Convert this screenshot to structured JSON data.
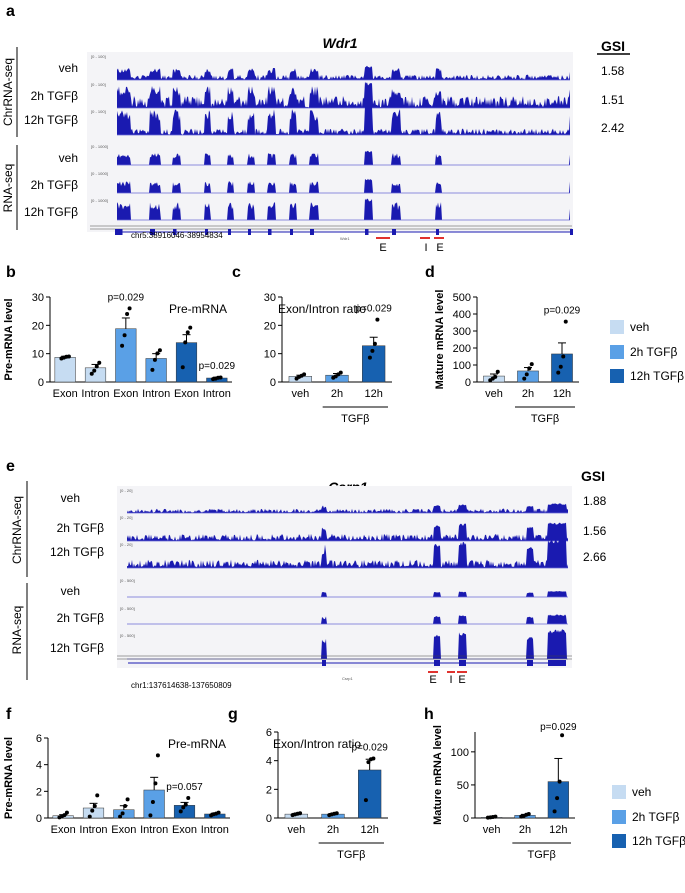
{
  "colors": {
    "veh": "#c6dcf2",
    "tgf2h": "#5aa0e6",
    "tgf12h": "#1761b0",
    "track": "#1a1ab0",
    "marker": "#e0332f"
  },
  "panel_a": {
    "label": "a",
    "gene": "Wdr1",
    "gsi_header": "GSI",
    "group1": "ChrRNA-seq",
    "group2": "RNA-seq",
    "tracks": [
      "veh",
      "2h TGFβ",
      "12h TGFβ",
      "veh",
      "2h TGFβ",
      "12h TGFβ"
    ],
    "range_labels": [
      "[0 - 100]",
      "[0 - 100]",
      "[0 - 100]",
      "[0 - 1000]",
      "[0 - 1000]",
      "[0 - 1000]"
    ],
    "gsi": [
      "1.58",
      "1.51",
      "2.42"
    ],
    "coord": "chr5:38916046-38954834",
    "gene_small": "Wdr1",
    "markers": [
      "E",
      "I",
      "E"
    ]
  },
  "panel_e": {
    "label": "e",
    "gene": "Csrp1",
    "gsi_header": "GSI",
    "group1": "ChrRNA-seq",
    "group2": "RNA-seq",
    "tracks": [
      "veh",
      "2h TGFβ",
      "12h TGFβ",
      "veh",
      "2h TGFβ",
      "12h TGFβ"
    ],
    "range_labels": [
      "[0 - 20]",
      "[0 - 20]",
      "[0 - 20]",
      "[0 - 500]",
      "[0 - 500]",
      "[0 - 500]"
    ],
    "gsi": [
      "1.88",
      "1.56",
      "2.66"
    ],
    "coord": "chr1:137614638-137650809",
    "gene_small": "Csrp1",
    "markers": [
      "E",
      "I",
      "E"
    ]
  },
  "legend_top": [
    "veh",
    "2h TGFβ",
    "12h TGFβ"
  ],
  "legend_bottom": [
    "veh",
    "2h TGFβ",
    "12h TGFβ"
  ],
  "chart_data": [
    {
      "id": "b",
      "type": "bar",
      "ylabel": "Pre-mRNA level",
      "annotation": "Pre-mRNA",
      "ylim": [
        0,
        30
      ],
      "yticks": [
        "0",
        "10",
        "20",
        "30"
      ],
      "categories": [
        "Exon",
        "Intron",
        "Exon",
        "Intron",
        "Exon",
        "Intron"
      ],
      "groups": [
        "veh",
        "veh",
        "2h",
        "2h",
        "12h",
        "12h"
      ],
      "values": [
        8.7,
        5.0,
        18.8,
        8.3,
        13.9,
        1.4
      ],
      "errors": [
        0.4,
        1.2,
        3.8,
        1.7,
        2.8,
        0.3
      ],
      "points": [
        [
          8.3,
          8.6,
          8.9,
          9.0
        ],
        [
          2.9,
          4.0,
          5.5,
          6.8
        ],
        [
          12.8,
          16.5,
          24.0,
          26.0
        ],
        [
          4.3,
          7.8,
          10.1,
          11.2
        ],
        [
          5.2,
          14.0,
          17.5,
          19.2
        ],
        [
          1.0,
          1.2,
          1.5,
          1.6
        ]
      ],
      "pvalues": [
        {
          "text": "p=0.029",
          "at": 2
        },
        {
          "text": "p=0.029",
          "at": 5
        }
      ],
      "subgroup_label": "",
      "subgroup_text": ""
    },
    {
      "id": "c",
      "type": "bar",
      "ylabel": "",
      "annotation": "Exon/Intron ratio",
      "ylim": [
        0,
        30
      ],
      "yticks": [
        "0",
        "10",
        "20",
        "30"
      ],
      "categories": [
        "veh",
        "2h",
        "12h"
      ],
      "groups": [
        "veh",
        "2h",
        "12h"
      ],
      "values": [
        2.0,
        2.4,
        12.8
      ],
      "errors": [
        0.4,
        0.6,
        3.0
      ],
      "points": [
        [
          1.2,
          1.8,
          2.2,
          2.7
        ],
        [
          1.5,
          2.0,
          2.7,
          3.3
        ],
        [
          8.6,
          11.0,
          13.5,
          22.0
        ]
      ],
      "pvalues": [
        {
          "text": "p=0.029",
          "at": 2
        }
      ],
      "subgroup_text": "TGFβ"
    },
    {
      "id": "d",
      "type": "bar",
      "ylabel": "Mature mRNA level",
      "annotation": "",
      "ylim": [
        0,
        500
      ],
      "yticks": [
        "0",
        "100",
        "200",
        "300",
        "400",
        "500"
      ],
      "categories": [
        "veh",
        "2h",
        "12h"
      ],
      "groups": [
        "veh",
        "2h",
        "12h"
      ],
      "values": [
        35,
        65,
        165
      ],
      "errors": [
        12,
        20,
        65
      ],
      "points": [
        [
          10,
          20,
          30,
          60
        ],
        [
          20,
          45,
          80,
          105
        ],
        [
          55,
          90,
          150,
          355
        ]
      ],
      "pvalues": [
        {
          "text": "p=0.029",
          "at": 2
        }
      ],
      "subgroup_text": "TGFβ"
    },
    {
      "id": "f",
      "type": "bar",
      "ylabel": "Pre-mRNA level",
      "annotation": "Pre-mRNA",
      "ylim": [
        0,
        6
      ],
      "yticks": [
        "0",
        "2",
        "4",
        "6"
      ],
      "categories": [
        "Exon",
        "Intron",
        "Exon",
        "Intron",
        "Exon",
        "Intron"
      ],
      "groups": [
        "veh",
        "veh",
        "2h",
        "2h",
        "12h",
        "12h"
      ],
      "values": [
        0.17,
        0.75,
        0.62,
        2.1,
        0.95,
        0.3
      ],
      "errors": [
        0.08,
        0.35,
        0.3,
        0.95,
        0.22,
        0.06
      ],
      "points": [
        [
          0.05,
          0.12,
          0.22,
          0.4
        ],
        [
          0.1,
          0.55,
          0.9,
          1.7
        ],
        [
          0.1,
          0.35,
          0.9,
          1.4
        ],
        [
          0.2,
          1.2,
          2.6,
          4.7
        ],
        [
          0.5,
          0.8,
          1.0,
          1.5
        ],
        [
          0.2,
          0.28,
          0.33,
          0.4
        ]
      ],
      "pvalues": [
        {
          "text": "p=0.057",
          "at": 4
        }
      ],
      "subgroup_text": ""
    },
    {
      "id": "g",
      "type": "bar",
      "ylabel": "",
      "annotation": "Exon/Intron ratio",
      "ylim": [
        0,
        6
      ],
      "yticks": [
        "0",
        "2",
        "4",
        "6"
      ],
      "categories": [
        "veh",
        "2h",
        "12h"
      ],
      "groups": [
        "veh",
        "2h",
        "12h"
      ],
      "values": [
        0.27,
        0.27,
        3.35
      ],
      "errors": [
        0.05,
        0.04,
        0.75
      ],
      "points": [
        [
          0.2,
          0.25,
          0.3,
          0.33
        ],
        [
          0.2,
          0.25,
          0.3,
          0.33
        ],
        [
          1.25,
          3.9,
          4.1,
          4.15
        ]
      ],
      "pvalues": [
        {
          "text": "p=0.029",
          "at": 2
        }
      ],
      "subgroup_text": "TGFβ"
    },
    {
      "id": "h",
      "type": "bar",
      "ylabel": "Mature mRNA level",
      "annotation": "",
      "ylim": [
        0,
        130
      ],
      "yticks": [
        "0",
        "50",
        "100"
      ],
      "categories": [
        "veh",
        "2h",
        "12h"
      ],
      "groups": [
        "veh",
        "2h",
        "12h"
      ],
      "values": [
        1,
        4,
        55
      ],
      "errors": [
        0.5,
        1.5,
        35
      ],
      "points": [
        [
          0.5,
          1,
          1.5,
          2
        ],
        [
          2,
          3,
          5,
          6
        ],
        [
          10,
          30,
          55,
          125
        ]
      ],
      "pvalues": [
        {
          "text": "p=0.029",
          "at": 2
        }
      ],
      "subgroup_text": "TGFβ"
    }
  ]
}
